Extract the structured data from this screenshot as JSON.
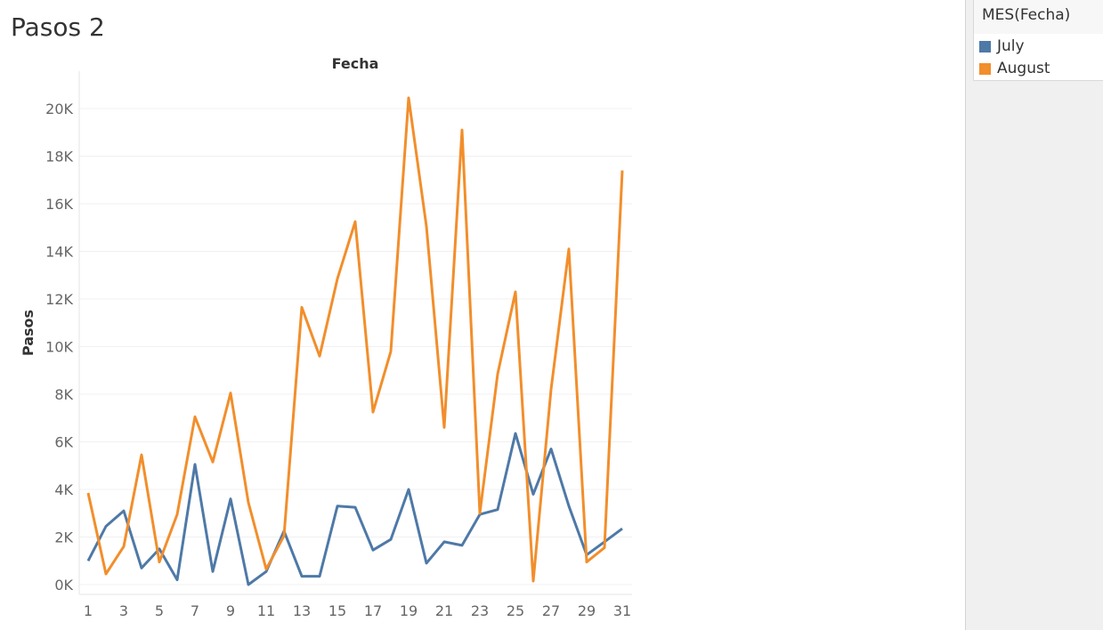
{
  "sheet": {
    "title": "Pasos 2"
  },
  "legend": {
    "title": "MES(Fecha)",
    "items": [
      {
        "label": "July",
        "color": "#4e79a7"
      },
      {
        "label": "August",
        "color": "#f28e2b"
      }
    ]
  },
  "chart_data": {
    "type": "line",
    "title": "",
    "xlabel": "Fecha",
    "ylabel": "Pasos",
    "x": [
      1,
      2,
      3,
      4,
      5,
      6,
      7,
      8,
      9,
      10,
      11,
      12,
      13,
      14,
      15,
      16,
      17,
      18,
      19,
      20,
      21,
      22,
      23,
      24,
      25,
      26,
      27,
      28,
      29,
      30,
      31
    ],
    "x_tick_labels": [
      "1",
      "3",
      "5",
      "7",
      "9",
      "11",
      "13",
      "15",
      "17",
      "19",
      "21",
      "23",
      "25",
      "27",
      "29",
      "31"
    ],
    "y_tick_labels": [
      "0K",
      "2K",
      "4K",
      "6K",
      "8K",
      "10K",
      "12K",
      "14K",
      "16K",
      "18K",
      "20K"
    ],
    "ylim": [
      0,
      21500
    ],
    "grid": true,
    "legend_placement": "right",
    "series": [
      {
        "name": "July",
        "color": "#4e79a7",
        "values": [
          1000,
          2450,
          3100,
          700,
          1500,
          200,
          5050,
          550,
          3600,
          0,
          550,
          2250,
          350,
          350,
          3300,
          3250,
          1450,
          1900,
          4000,
          900,
          1800,
          1650,
          2950,
          3150,
          6350,
          3800,
          5700,
          3300,
          1250,
          1800,
          2350
        ]
      },
      {
        "name": "August",
        "color": "#f28e2b",
        "values": [
          3850,
          450,
          1600,
          5450,
          950,
          2950,
          7050,
          5150,
          8050,
          3450,
          650,
          2050,
          11650,
          9600,
          12850,
          15250,
          7250,
          9800,
          20450,
          15050,
          6600,
          19100,
          3000,
          8850,
          12300,
          150,
          8200,
          14100,
          950,
          1550,
          17400
        ]
      }
    ]
  }
}
